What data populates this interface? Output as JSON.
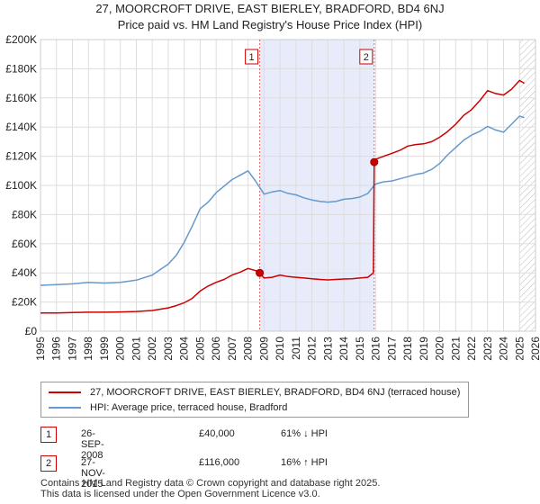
{
  "title_line1": "27, MOORCROFT DRIVE, EAST BIERLEY, BRADFORD, BD4 6NJ",
  "title_line2": "Price paid vs. HM Land Registry's House Price Index (HPI)",
  "colors": {
    "property": "#cc0000",
    "hpi": "#6699cc",
    "shade": "#e8ecfa"
  },
  "legend": {
    "property_label": "27, MOORCROFT DRIVE, EAST BIERLEY, BRADFORD, BD4 6NJ (terraced house)",
    "hpi_label": "HPI: Average price, terraced house, Bradford"
  },
  "sales": [
    {
      "id": "1",
      "date": "26-SEP-2008",
      "price": "£40,000",
      "hpi_rel": "61% ↓ HPI",
      "year": 2008.73,
      "value": 40000
    },
    {
      "id": "2",
      "date": "27-NOV-2015",
      "price": "£116,000",
      "hpi_rel": "16% ↑ HPI",
      "year": 2015.9,
      "value": 116000
    }
  ],
  "footer": {
    "line1": "Contains HM Land Registry data © Crown copyright and database right 2025.",
    "line2": "This data is licensed under the Open Government Licence v3.0."
  },
  "chart_data": {
    "type": "line",
    "title": "Price paid vs. HM Land Registry's House Price Index (HPI)",
    "xlabel": "",
    "ylabel": "",
    "xlim": [
      1995,
      2026
    ],
    "ylim": [
      0,
      200000
    ],
    "x_ticks": [
      1995,
      1996,
      1997,
      1998,
      1999,
      2000,
      2001,
      2002,
      2003,
      2004,
      2005,
      2006,
      2007,
      2008,
      2009,
      2010,
      2011,
      2012,
      2013,
      2014,
      2015,
      2016,
      2017,
      2018,
      2019,
      2020,
      2021,
      2022,
      2023,
      2024,
      2025,
      2026
    ],
    "y_ticks": [
      {
        "value": 0,
        "label": "£0"
      },
      {
        "value": 20000,
        "label": "£20K"
      },
      {
        "value": 40000,
        "label": "£40K"
      },
      {
        "value": 60000,
        "label": "£60K"
      },
      {
        "value": 80000,
        "label": "£80K"
      },
      {
        "value": 100000,
        "label": "£100K"
      },
      {
        "value": 120000,
        "label": "£120K"
      },
      {
        "value": 140000,
        "label": "£140K"
      },
      {
        "value": 160000,
        "label": "£160K"
      },
      {
        "value": 180000,
        "label": "£180K"
      },
      {
        "value": 200000,
        "label": "£200K"
      }
    ],
    "grid": true,
    "shaded_range": [
      2008.73,
      2015.9
    ],
    "future_hatch_from": 2025.0,
    "series": [
      {
        "name": "27, MOORCROFT DRIVE, EAST BIERLEY, BRADFORD, BD4 6NJ (terraced house)",
        "color": "#cc0000",
        "x": [
          1995,
          1996,
          1997,
          1998,
          1999,
          2000,
          2001,
          2002,
          2003,
          2003.5,
          2004,
          2004.5,
          2005,
          2005.5,
          2006,
          2006.5,
          2007,
          2007.5,
          2008,
          2008.5,
          2008.73,
          2009,
          2009.5,
          2010,
          2010.5,
          2011,
          2011.5,
          2012,
          2012.5,
          2013,
          2013.5,
          2014,
          2014.5,
          2015,
          2015.5,
          2015.85,
          2015.9,
          2016,
          2016.5,
          2017,
          2017.5,
          2018,
          2018.5,
          2019,
          2019.5,
          2020,
          2020.5,
          2021,
          2021.5,
          2022,
          2022.5,
          2023,
          2023.5,
          2024,
          2024.5,
          2025,
          2025.3
        ],
        "values": [
          12500,
          12500,
          12800,
          13000,
          13000,
          13200,
          13500,
          14200,
          16000,
          17500,
          19500,
          22500,
          27500,
          31000,
          33500,
          35500,
          38500,
          40500,
          43000,
          41500,
          40000,
          36500,
          37000,
          38500,
          37500,
          37000,
          36500,
          36000,
          35500,
          35200,
          35500,
          35800,
          36000,
          36500,
          37000,
          40000,
          116000,
          118000,
          120000,
          122000,
          124000,
          127000,
          128000,
          128500,
          130000,
          133000,
          137000,
          142000,
          148000,
          152000,
          158000,
          165000,
          163000,
          162000,
          166000,
          172000,
          170000
        ]
      },
      {
        "name": "HPI: Average price, terraced house, Bradford",
        "color": "#6699cc",
        "x": [
          1995,
          1996,
          1997,
          1998,
          1999,
          2000,
          2001,
          2002,
          2003,
          2003.5,
          2004,
          2004.5,
          2005,
          2005.5,
          2006,
          2006.5,
          2007,
          2007.5,
          2008,
          2008.5,
          2009,
          2009.5,
          2010,
          2010.5,
          2011,
          2011.5,
          2012,
          2012.5,
          2013,
          2013.5,
          2014,
          2014.5,
          2015,
          2015.5,
          2015.9,
          2016,
          2016.5,
          2017,
          2017.5,
          2018,
          2018.5,
          2019,
          2019.5,
          2020,
          2020.5,
          2021,
          2021.5,
          2022,
          2022.5,
          2023,
          2023.5,
          2024,
          2024.5,
          2025,
          2025.3
        ],
        "values": [
          31500,
          32000,
          32500,
          33500,
          33000,
          33500,
          35000,
          38500,
          46000,
          52000,
          61000,
          72000,
          84000,
          88500,
          95000,
          99500,
          104000,
          107000,
          110000,
          102500,
          94000,
          95500,
          96500,
          94500,
          93500,
          91500,
          90000,
          89000,
          88500,
          89000,
          90500,
          91000,
          92000,
          94500,
          100000,
          101000,
          102500,
          103000,
          104500,
          106000,
          107500,
          108500,
          111000,
          115000,
          121000,
          126000,
          131000,
          134500,
          137000,
          140500,
          138000,
          136500,
          142000,
          147500,
          146500
        ]
      }
    ]
  }
}
